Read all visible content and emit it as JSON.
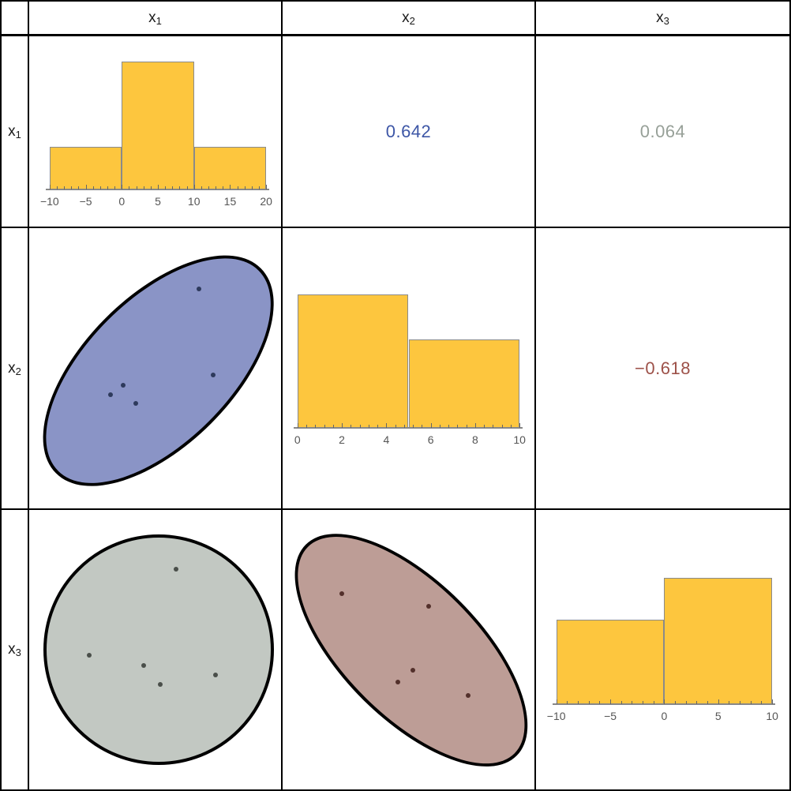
{
  "header": {
    "corner": "",
    "columns": [
      {
        "base": "x",
        "sub": "1"
      },
      {
        "base": "x",
        "sub": "2"
      },
      {
        "base": "x",
        "sub": "3"
      }
    ]
  },
  "row_labels": [
    {
      "base": "x",
      "sub": "1"
    },
    {
      "base": "x",
      "sub": "2"
    },
    {
      "base": "x",
      "sub": "3"
    }
  ],
  "colors": {
    "histogram_bar": "#FDC63E",
    "histogram_bar_edge": "#8a8a8a",
    "axis": "#888888",
    "tick_label": "#555555",
    "grid_line": "#000000",
    "ellipse_stroke": "#000000",
    "ellipse_x2x1_fill": "#8A94C6",
    "ellipse_x3x1_fill": "#C2C8C2",
    "ellipse_x3x2_fill": "#BD9D96",
    "corr_positive_strong": "#3D56A6",
    "corr_near_zero": "#97A098",
    "corr_negative": "#9D5149"
  },
  "chart_data": [
    {
      "row": "x1",
      "col": "x1",
      "type": "histogram",
      "title": "Histogram of x1",
      "x_range": [
        -10,
        20
      ],
      "bins": [
        {
          "from": -10,
          "to": 0,
          "count": 1
        },
        {
          "from": 0,
          "to": 10,
          "count": 3
        },
        {
          "from": 10,
          "to": 20,
          "count": 1
        }
      ],
      "major_ticks": [
        {
          "v": -10,
          "label": "−10"
        },
        {
          "v": -5,
          "label": "−5"
        },
        {
          "v": 0,
          "label": "0"
        },
        {
          "v": 5,
          "label": "5"
        },
        {
          "v": 10,
          "label": "10"
        },
        {
          "v": 15,
          "label": "15"
        },
        {
          "v": 20,
          "label": "20"
        }
      ],
      "minor_tick_step": 1,
      "bar_color": "#FDC63E",
      "layout": {
        "plot_left": 0.081,
        "plot_right": 0.941,
        "baseline": 0.807,
        "unit_height": 0.225
      }
    },
    {
      "row": "x1",
      "col": "x2",
      "type": "correlation",
      "value": "0.642",
      "color": "#3D56A6"
    },
    {
      "row": "x1",
      "col": "x3",
      "type": "correlation",
      "value": "0.064",
      "color": "#97A098"
    },
    {
      "row": "x2",
      "col": "x1",
      "type": "scatter-ellipse",
      "title": "x2 vs x1 confidence ellipse",
      "fill": "#8A94C6",
      "point_color": "#2E3A5C",
      "cx": 0.514,
      "cy": 0.507,
      "a": 0.576,
      "b": 0.296,
      "rotation_deg": -45,
      "points": [
        {
          "x": 0.673,
          "y": 0.216
        },
        {
          "x": 0.729,
          "y": 0.524
        },
        {
          "x": 0.374,
          "y": 0.56
        },
        {
          "x": 0.324,
          "y": 0.594
        },
        {
          "x": 0.424,
          "y": 0.625
        }
      ]
    },
    {
      "row": "x2",
      "col": "x2",
      "type": "histogram",
      "title": "Histogram of x2",
      "x_range": [
        0,
        10
      ],
      "bins": [
        {
          "from": 0,
          "to": 5,
          "count": 3
        },
        {
          "from": 5,
          "to": 10,
          "count": 2
        }
      ],
      "major_ticks": [
        {
          "v": 0,
          "label": "0"
        },
        {
          "v": 2,
          "label": "2"
        },
        {
          "v": 4,
          "label": "4"
        },
        {
          "v": 6,
          "label": "6"
        },
        {
          "v": 8,
          "label": "8"
        },
        {
          "v": 10,
          "label": "10"
        }
      ],
      "minor_tick_step": 0.4,
      "bar_color": "#FDC63E",
      "layout": {
        "plot_left": 0.059,
        "plot_right": 0.941,
        "baseline": 0.714,
        "unit_height": 0.159
      }
    },
    {
      "row": "x2",
      "col": "x3",
      "type": "correlation",
      "value": "−0.618",
      "color": "#9D5149"
    },
    {
      "row": "x3",
      "col": "x1",
      "type": "scatter-ellipse",
      "title": "x3 vs x1 confidence ellipse",
      "fill": "#C2C8C2",
      "point_color": "#4A4F4A",
      "cx": 0.514,
      "cy": 0.5,
      "a": 0.458,
      "b": 0.458,
      "rotation_deg": 0,
      "points": [
        {
          "x": 0.583,
          "y": 0.212
        },
        {
          "x": 0.237,
          "y": 0.52
        },
        {
          "x": 0.455,
          "y": 0.556
        },
        {
          "x": 0.52,
          "y": 0.623
        },
        {
          "x": 0.741,
          "y": 0.589
        }
      ]
    },
    {
      "row": "x3",
      "col": "x2",
      "type": "scatter-ellipse",
      "title": "x3 vs x2 confidence ellipse",
      "fill": "#BD9D96",
      "point_color": "#53302B",
      "cx": 0.511,
      "cy": 0.5,
      "a": 0.592,
      "b": 0.274,
      "rotation_deg": 45,
      "points": [
        {
          "x": 0.234,
          "y": 0.299
        },
        {
          "x": 0.579,
          "y": 0.346
        },
        {
          "x": 0.517,
          "y": 0.573
        },
        {
          "x": 0.458,
          "y": 0.615
        },
        {
          "x": 0.738,
          "y": 0.665
        }
      ]
    },
    {
      "row": "x3",
      "col": "x3",
      "type": "histogram",
      "title": "Histogram of x3",
      "x_range": [
        -10,
        10
      ],
      "bins": [
        {
          "from": -10,
          "to": 0,
          "count": 2
        },
        {
          "from": 0,
          "to": 10,
          "count": 3
        }
      ],
      "major_ticks": [
        {
          "v": -10,
          "label": "−10"
        },
        {
          "v": -5,
          "label": "−5"
        },
        {
          "v": 0,
          "label": "0"
        },
        {
          "v": 5,
          "label": "5"
        },
        {
          "v": 10,
          "label": "10"
        }
      ],
      "minor_tick_step": 1,
      "bar_color": "#FDC63E",
      "layout": {
        "plot_left": 0.08,
        "plot_right": 0.932,
        "baseline": 0.695,
        "unit_height": 0.151
      }
    }
  ]
}
